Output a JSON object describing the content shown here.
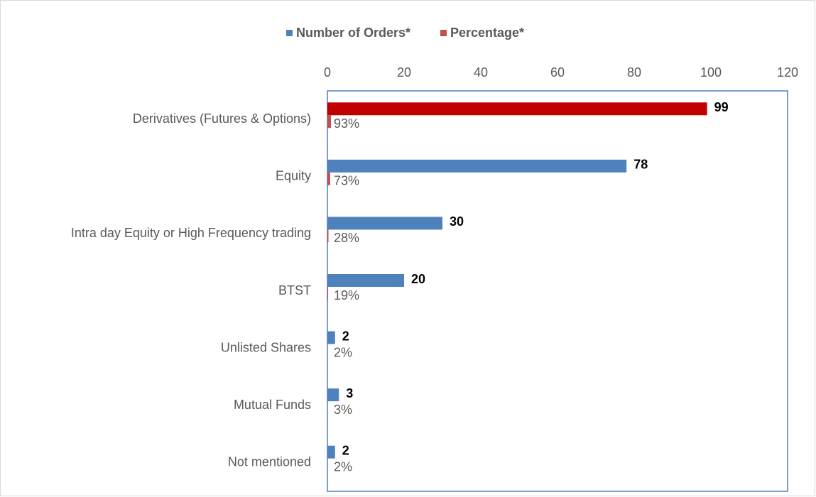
{
  "chart_data": {
    "type": "hbar",
    "categories": [
      "Derivatives (Futures & Options)",
      "Equity",
      "Intra day Equity or High Frequency trading",
      "BTST",
      "Unlisted Shares",
      "Mutual Funds",
      "Not mentioned"
    ],
    "series": [
      {
        "name": "Number of Orders*",
        "color": "#4f81bd",
        "point_colors": [
          "#c00000",
          "#4f81bd",
          "#4f81bd",
          "#4f81bd",
          "#4f81bd",
          "#4f81bd",
          "#4f81bd"
        ],
        "values": [
          99,
          78,
          30,
          20,
          2,
          3,
          2
        ]
      },
      {
        "name": "Percentage*",
        "color": "#c0504d",
        "values": [
          0.93,
          0.73,
          0.28,
          0.19,
          0.02,
          0.03,
          0.02
        ],
        "value_labels": [
          "93%",
          "73%",
          "28%",
          "19%",
          "2%",
          "3%",
          "2%"
        ]
      }
    ],
    "xlim": [
      0,
      120
    ],
    "xticks": [
      0,
      20,
      40,
      60,
      80,
      100,
      120
    ],
    "legend": "top"
  }
}
